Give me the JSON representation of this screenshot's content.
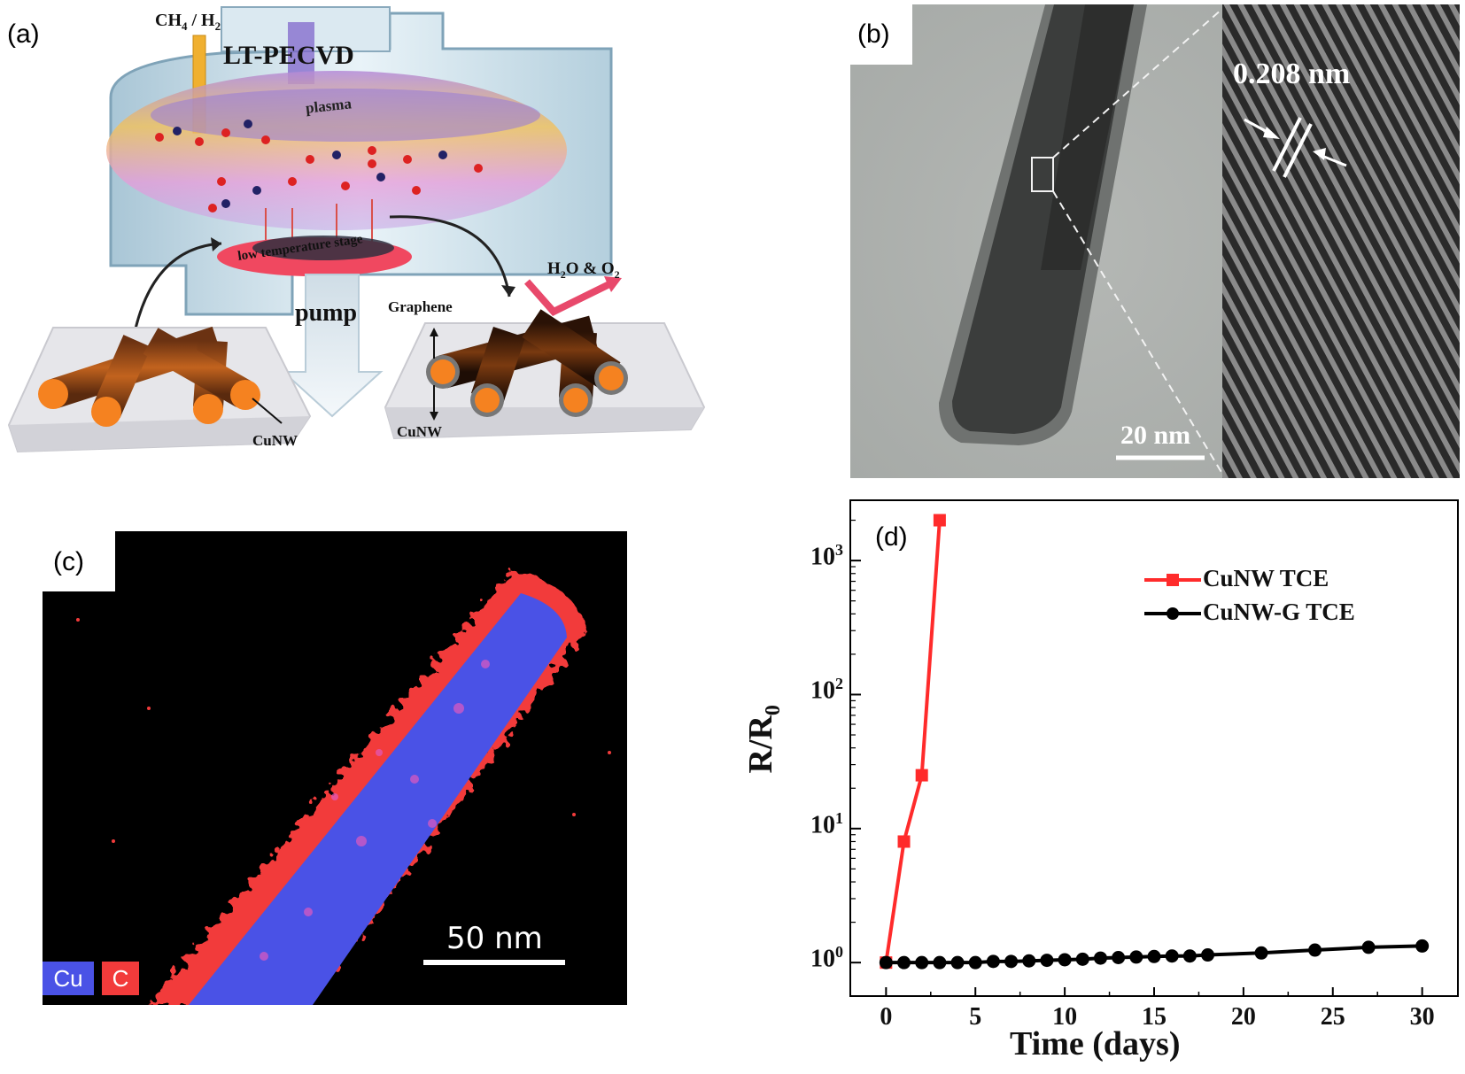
{
  "panels": {
    "a": {
      "label": "(a)",
      "title": "LT-PECVD",
      "gas": "CH",
      "gas_sub1": "4",
      "gas_mid": " / H",
      "gas_sub2": "2",
      "plasma": "plasma",
      "stage": "low temperature stage",
      "pump": "pump",
      "graphene": "Graphene",
      "cunw_left": "CuNW",
      "cunw_right": "CuNW",
      "exhaust_h": "H",
      "exhaust_sub1": "2",
      "exhaust_mid": "O & O",
      "exhaust_sub2": "2",
      "colors": {
        "nanowire": "#f58220",
        "graphene_shell": "#2b2b2b",
        "plasma": "#d48bd6"
      }
    },
    "b": {
      "label": "(b)",
      "lattice_spacing": "0.208 nm",
      "scale_bar": "20 nm"
    },
    "c": {
      "label": "(c)",
      "scale_bar": "50 nm",
      "legend": [
        {
          "name": "Cu",
          "color": "#4a52e6"
        },
        {
          "name": "C",
          "color": "#f23b3b"
        }
      ]
    },
    "d": {
      "label": "(d)"
    }
  },
  "chart_data": {
    "type": "line",
    "title": "",
    "xlabel": "Time (days)",
    "ylabel_main": "R/R",
    "ylabel_sub": "0",
    "xlim": [
      -2,
      32
    ],
    "ylim_log10": [
      -0.25,
      3.45
    ],
    "yscale": "log",
    "x_ticks": [
      0,
      5,
      10,
      15,
      20,
      25,
      30
    ],
    "x_tick_labels": [
      "0",
      "5",
      "10",
      "15",
      "20",
      "25",
      "30"
    ],
    "y_ticks": [
      {
        "base": "10",
        "exp": "0",
        "log": 0
      },
      {
        "base": "10",
        "exp": "1",
        "log": 1
      },
      {
        "base": "10",
        "exp": "2",
        "log": 2
      },
      {
        "base": "10",
        "exp": "3",
        "log": 3
      }
    ],
    "legend_position": "top-right",
    "series": [
      {
        "name": "CuNW TCE",
        "color": "#ff2b2b",
        "marker": "square",
        "x": [
          0,
          1,
          2,
          3
        ],
        "y": [
          1,
          8,
          25,
          2000
        ]
      },
      {
        "name": "CuNW-G TCE",
        "color": "#000000",
        "marker": "circle",
        "x": [
          0,
          1,
          2,
          3,
          4,
          5,
          6,
          7,
          8,
          9,
          10,
          11,
          12,
          13,
          14,
          15,
          16,
          17,
          18,
          21,
          24,
          27,
          30
        ],
        "y": [
          1.0,
          1.0,
          1.0,
          1.0,
          1.0,
          1.0,
          1.02,
          1.02,
          1.03,
          1.04,
          1.05,
          1.06,
          1.08,
          1.09,
          1.1,
          1.11,
          1.12,
          1.12,
          1.14,
          1.18,
          1.24,
          1.3,
          1.33
        ]
      }
    ]
  }
}
